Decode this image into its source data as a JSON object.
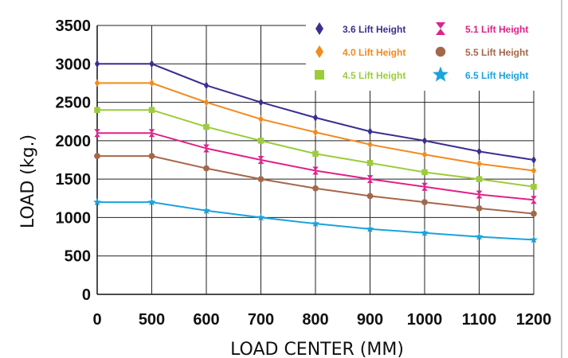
{
  "chart_data": {
    "type": "line",
    "xlabel": "LOAD CENTER (MM)",
    "ylabel": "LOAD (kg.)",
    "categories": [
      "0",
      "500",
      "600",
      "700",
      "800",
      "900",
      "1000",
      "1100",
      "1200"
    ],
    "ylim": [
      0,
      3500
    ],
    "yticks": [
      0,
      500,
      1000,
      1500,
      2000,
      2500,
      3000,
      3500
    ],
    "grid": true,
    "legend_position": "top-right",
    "series": [
      {
        "name": "3.6 Lift Height",
        "color": "#3a2f8f",
        "marker": "diamond",
        "values": [
          3000,
          3000,
          2720,
          2500,
          2300,
          2120,
          2000,
          1860,
          1750
        ]
      },
      {
        "name": "4.0 Lift Height",
        "color": "#f28a1e",
        "marker": "diamond",
        "values": [
          2750,
          2750,
          2500,
          2280,
          2110,
          1950,
          1820,
          1700,
          1610
        ]
      },
      {
        "name": "4.5 Lift Height",
        "color": "#9ccc3c",
        "marker": "square",
        "values": [
          2400,
          2400,
          2180,
          2000,
          1830,
          1710,
          1590,
          1500,
          1400
        ]
      },
      {
        "name": "5.1 Lift Height",
        "color": "#e0218a",
        "marker": "hourglass",
        "values": [
          2100,
          2100,
          1900,
          1750,
          1610,
          1500,
          1400,
          1300,
          1230
        ]
      },
      {
        "name": "5.5 Lift Height",
        "color": "#a5674a",
        "marker": "circle",
        "values": [
          1800,
          1800,
          1640,
          1500,
          1380,
          1280,
          1200,
          1120,
          1050
        ]
      },
      {
        "name": "6.5 Lift Height",
        "color": "#1ba3dc",
        "marker": "star",
        "values": [
          1200,
          1200,
          1090,
          1000,
          920,
          850,
          800,
          750,
          710
        ]
      }
    ]
  }
}
